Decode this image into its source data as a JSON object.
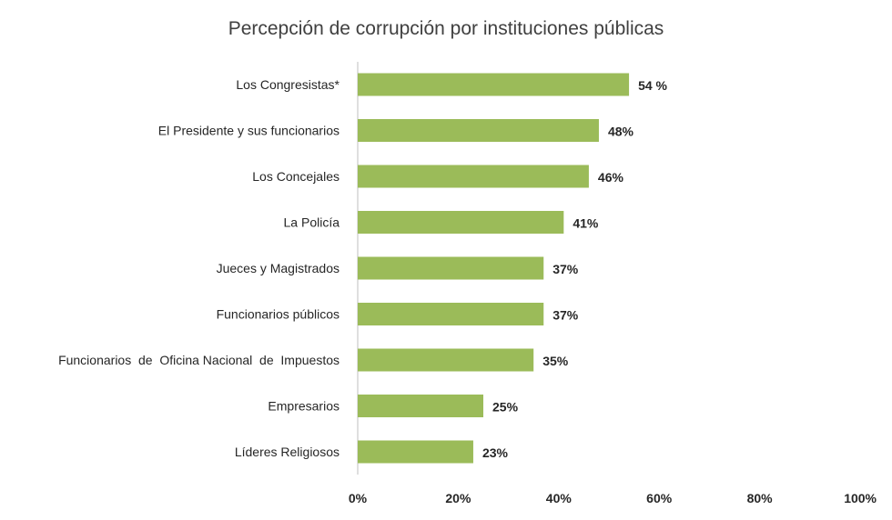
{
  "chart_data": {
    "type": "bar",
    "orientation": "horizontal",
    "title": "Percepción de corrupción por instituciones públicas",
    "categories": [
      "Los Congresistas*",
      "El Presidente y sus funcionarios",
      "Los Concejales",
      "La Policía",
      "Jueces y Magistrados",
      "Funcionarios públicos",
      "Funcionarios  de  Oficina Nacional  de  Impuestos",
      "Empresarios",
      "Líderes Religiosos"
    ],
    "values": [
      54,
      48,
      46,
      41,
      37,
      37,
      35,
      25,
      23
    ],
    "value_labels": [
      "54 %",
      "48%",
      "46%",
      "41%",
      "37%",
      "37%",
      "35%",
      "25%",
      "23%"
    ],
    "xlim": [
      0,
      100
    ],
    "x_ticks": [
      0,
      20,
      40,
      60,
      80,
      100
    ],
    "x_tick_labels": [
      "0%",
      "20%",
      "40%",
      "60%",
      "80%",
      "100%"
    ],
    "xlabel": "",
    "ylabel": "",
    "grid": false,
    "colors": {
      "bar": "#9bbb59",
      "axis": "#bfbfbf",
      "text": "#262626",
      "title": "#404040"
    }
  }
}
